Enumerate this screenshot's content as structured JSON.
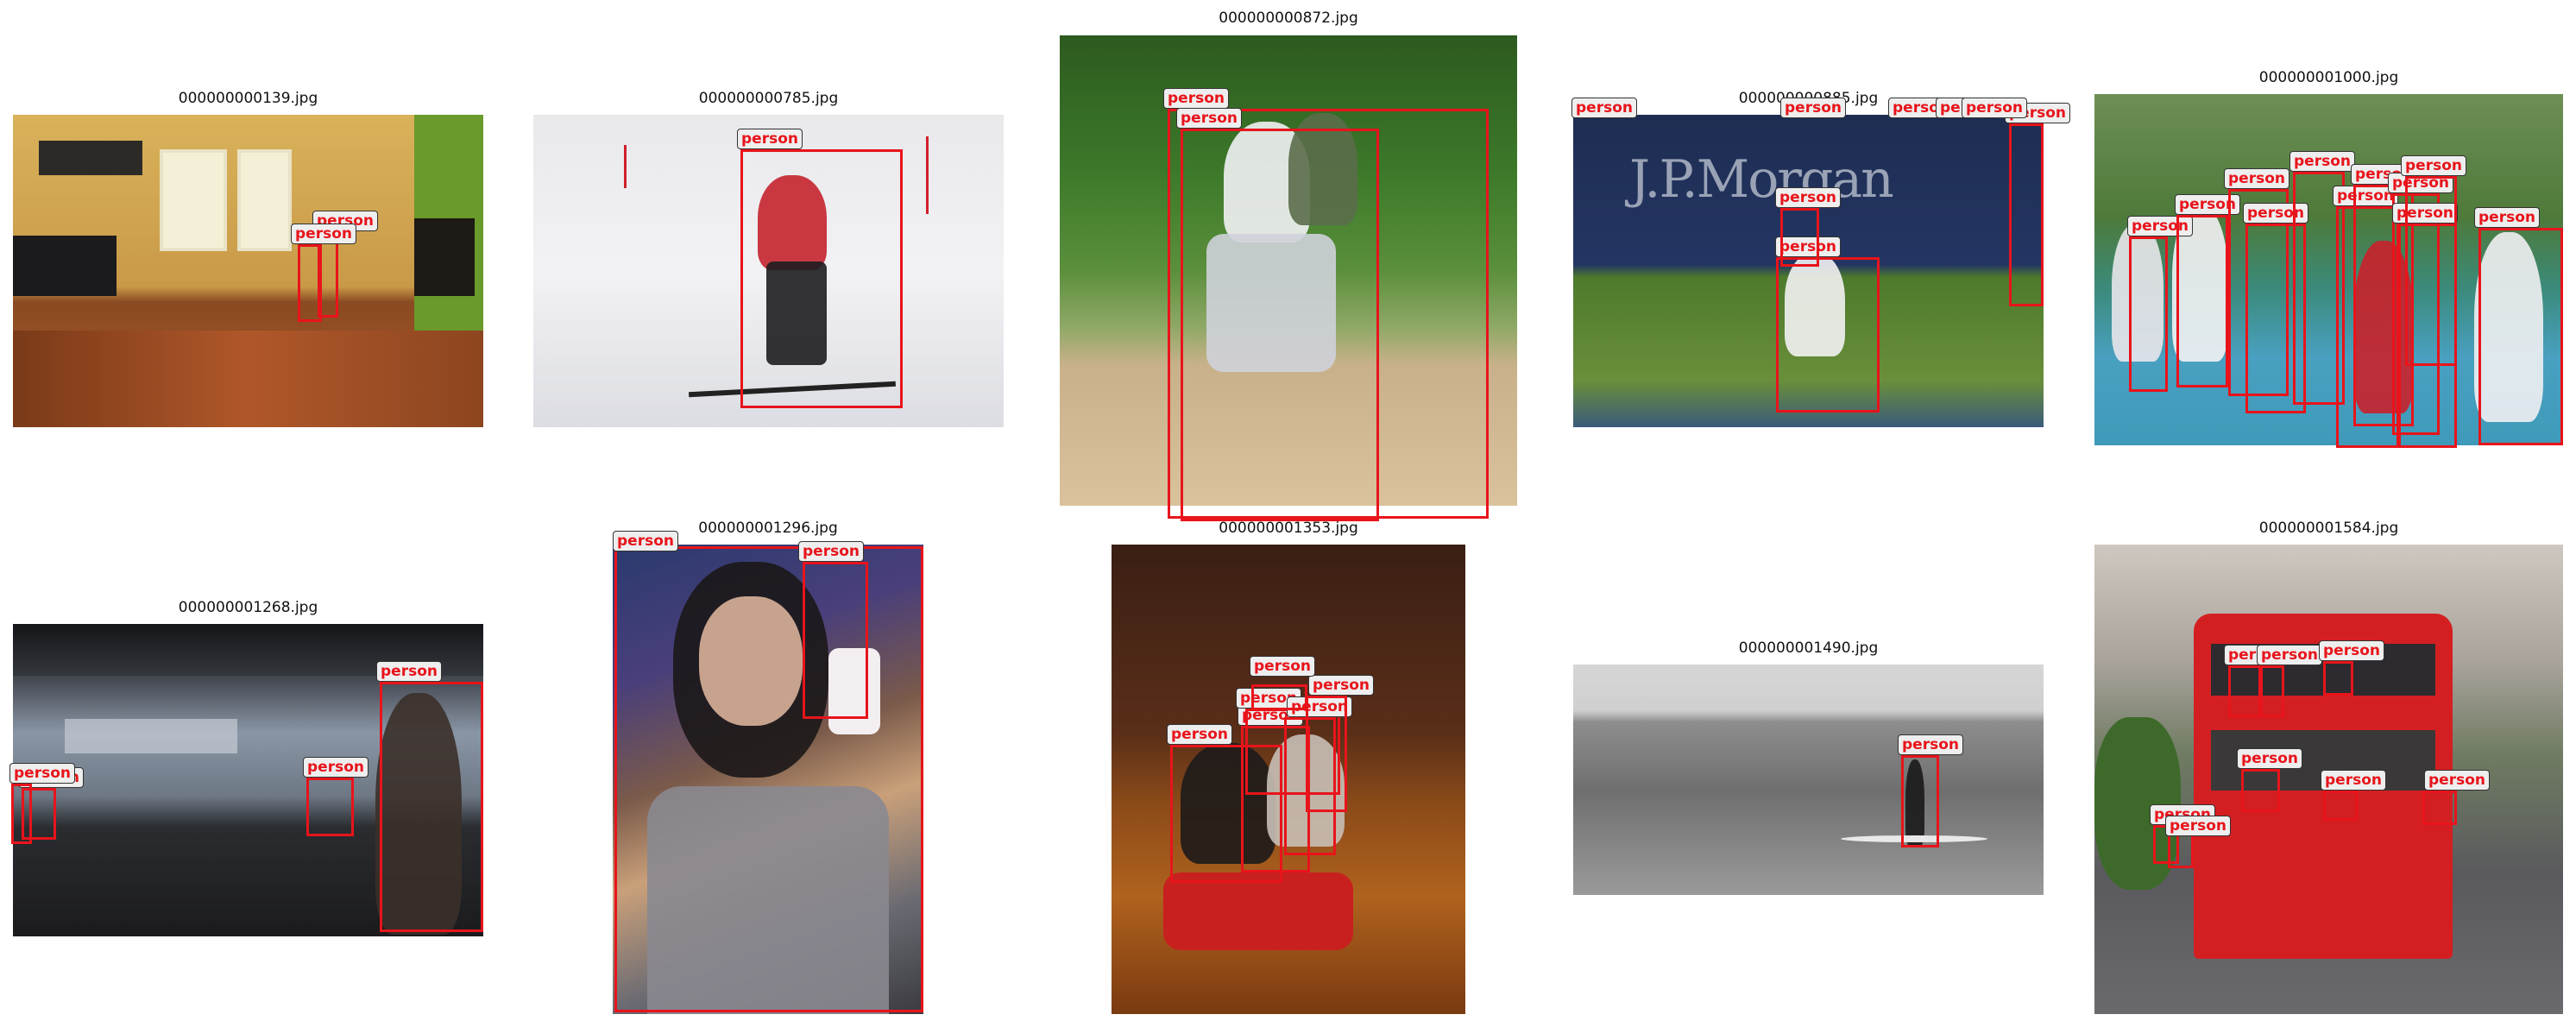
{
  "panels": [
    {
      "file": "000000000139.jpg",
      "label": "person"
    },
    {
      "file": "000000000785.jpg",
      "label": "person"
    },
    {
      "file": "000000000872.jpg",
      "label": "person"
    },
    {
      "file": "000000000885.jpg",
      "label": "person"
    },
    {
      "file": "000000001000.jpg",
      "label": "person"
    },
    {
      "file": "000000001268.jpg",
      "label": "person"
    },
    {
      "file": "000000001296.jpg",
      "label": "person"
    },
    {
      "file": "000000001353.jpg",
      "label": "person"
    },
    {
      "file": "000000001490.jpg",
      "label": "person"
    },
    {
      "file": "000000001584.jpg",
      "label": "person"
    }
  ],
  "box_color": "#e8141b"
}
